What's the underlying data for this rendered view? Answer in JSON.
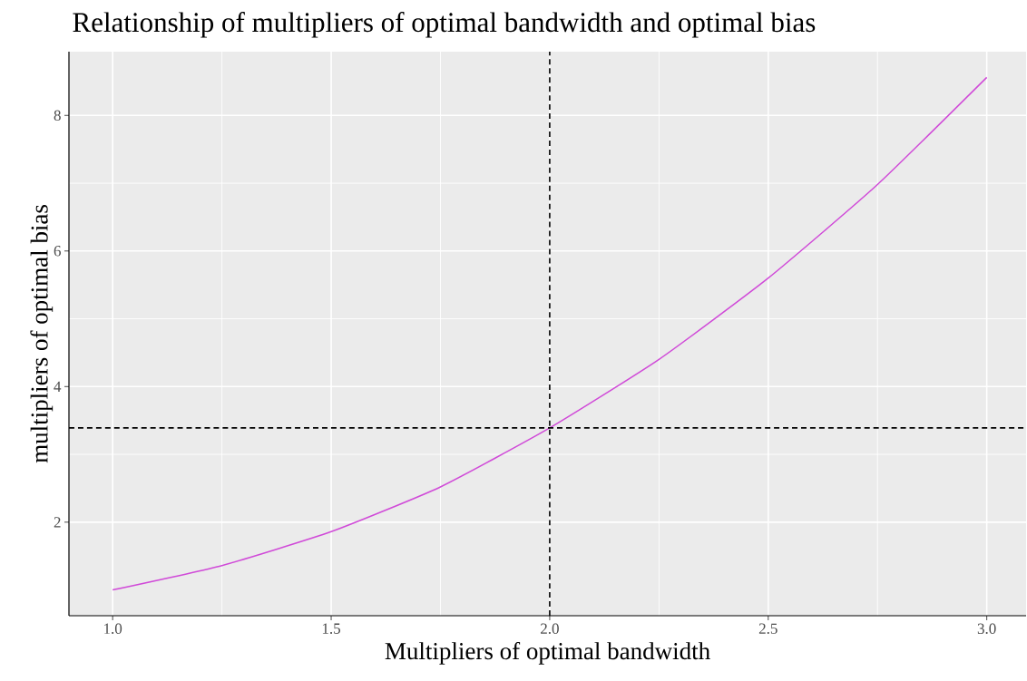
{
  "chart_data": {
    "type": "line",
    "title": "Relationship of multipliers of optimal bandwidth and optimal bias",
    "xlabel": "Multipliers of optimal bandwidth",
    "ylabel": "multipliers of optimal bias",
    "x": [
      1.0,
      1.25,
      1.5,
      1.75,
      2.0,
      2.25,
      2.5,
      2.75,
      3.0
    ],
    "series": [
      {
        "color": "#d04ad8",
        "values": [
          1.0,
          1.36,
          1.86,
          2.52,
          3.39,
          4.4,
          5.6,
          6.98,
          8.56
        ]
      }
    ],
    "xlim": [
      0.9,
      3.09
    ],
    "ylim": [
      0.62,
      8.94
    ],
    "xticks": [
      {
        "value": 1.0,
        "label": "1.0"
      },
      {
        "value": 1.5,
        "label": "1.5"
      },
      {
        "value": 2.0,
        "label": "2.0"
      },
      {
        "value": 2.5,
        "label": "2.5"
      },
      {
        "value": 3.0,
        "label": "3.0"
      }
    ],
    "yticks": [
      2,
      4,
      6,
      8
    ],
    "grid": true,
    "ref_lines": [
      {
        "axis": "x",
        "value": 2.0,
        "color": "#000000",
        "line_style": "dashed"
      },
      {
        "axis": "y",
        "value": 3.39,
        "color": "#000000",
        "line_style": "dashed"
      }
    ]
  }
}
